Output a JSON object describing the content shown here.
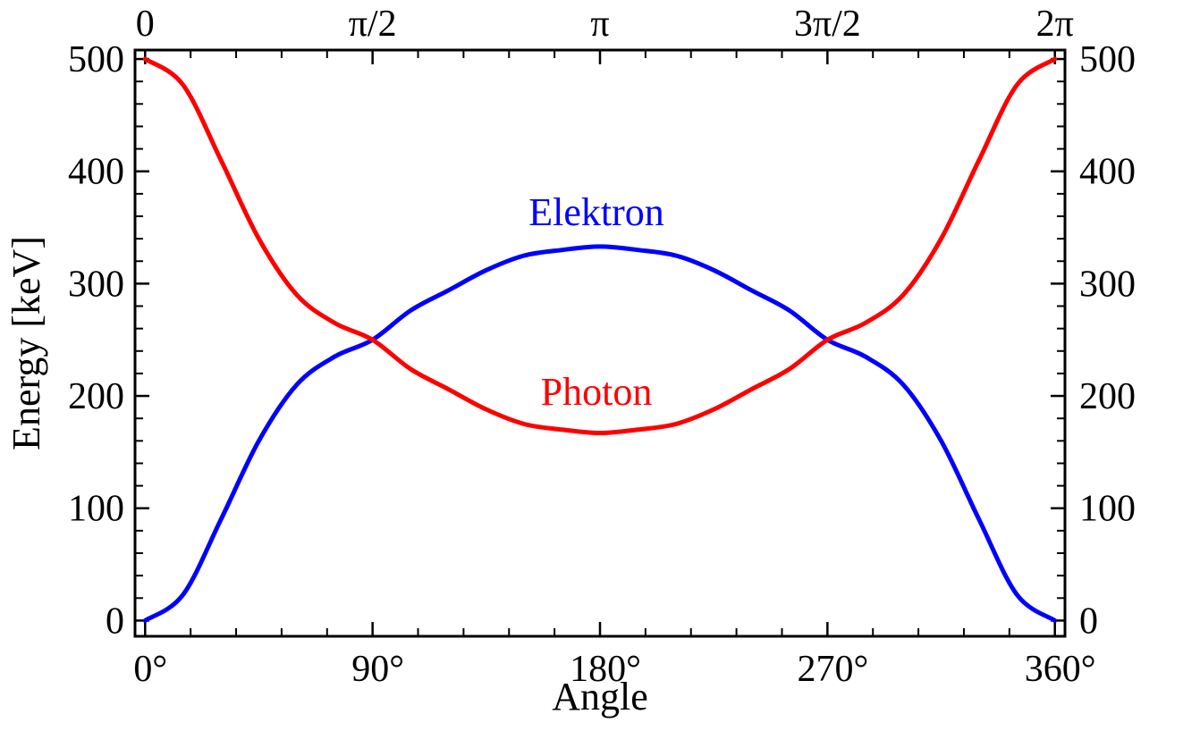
{
  "chart_data": {
    "type": "line",
    "title": "",
    "xlabel": "Angle",
    "ylabel": "Energy [keV]",
    "xlim": [
      -4,
      364
    ],
    "ylim": [
      -14,
      508
    ],
    "grid": false,
    "legend": "none",
    "x_ticks": [
      {
        "value": 0,
        "label": "0°"
      },
      {
        "value": 90,
        "label": "90°"
      },
      {
        "value": 180,
        "label": "180°"
      },
      {
        "value": 270,
        "label": "270°"
      },
      {
        "value": 360,
        "label": "360°"
      }
    ],
    "x_ticks_top": [
      {
        "value": 0,
        "label": "0"
      },
      {
        "value": 90,
        "label": "π/2"
      },
      {
        "value": 180,
        "label": "π"
      },
      {
        "value": 270,
        "label": "3π/2"
      },
      {
        "value": 360,
        "label": "2π"
      }
    ],
    "y_ticks": [
      {
        "value": 0,
        "label": "0"
      },
      {
        "value": 100,
        "label": "100"
      },
      {
        "value": 200,
        "label": "200"
      },
      {
        "value": 300,
        "label": "300"
      },
      {
        "value": 400,
        "label": "400"
      },
      {
        "value": 500,
        "label": "500"
      }
    ],
    "x": [
      0,
      15,
      30,
      45,
      60,
      75,
      90,
      105,
      120,
      135,
      150,
      165,
      180,
      195,
      210,
      225,
      240,
      255,
      270,
      285,
      300,
      315,
      330,
      345,
      360
    ],
    "series": [
      {
        "name": "Elektron",
        "color": "#0000ff",
        "label_at": [
          180,
          360
        ],
        "values": [
          0,
          23,
          90,
          160,
          210,
          235,
          250,
          276,
          294,
          312,
          325,
          330,
          333,
          330,
          325,
          312,
          294,
          276,
          250,
          235,
          210,
          160,
          90,
          23,
          0
        ]
      },
      {
        "name": "Photon",
        "color": "#ff0000",
        "label_at": [
          180,
          200
        ],
        "values": [
          500,
          477,
          410,
          340,
          290,
          265,
          250,
          224,
          206,
          188,
          175,
          170,
          167,
          170,
          175,
          188,
          206,
          224,
          250,
          265,
          290,
          340,
          410,
          477,
          500
        ]
      }
    ]
  }
}
